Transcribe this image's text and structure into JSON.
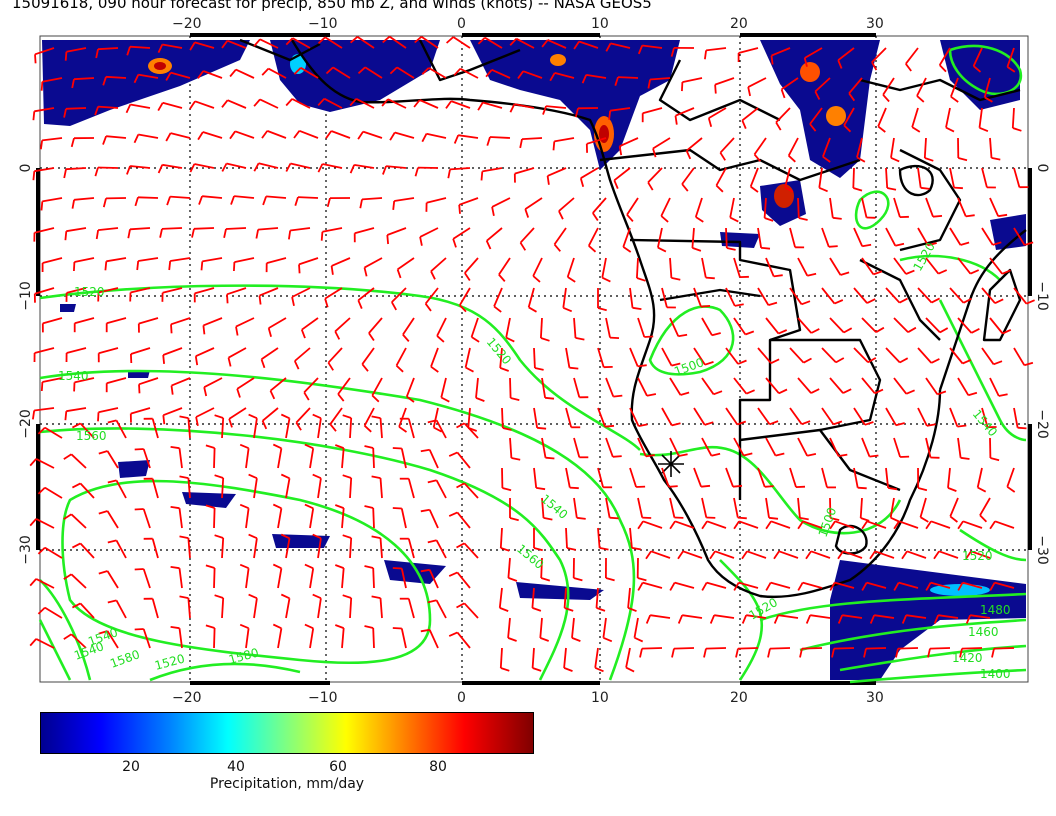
{
  "title": "15091618, 090 hour forecast for precip, 850 mb Z, and winds (knots) -- NASA GEOS5",
  "axes": {
    "x_ticks": [
      "−20",
      "−10",
      "0",
      "10",
      "20",
      "30"
    ],
    "y_ticks": [
      "0",
      "−10",
      "−20",
      "−30"
    ],
    "y_ticks_right": [
      "0",
      "−10",
      "−20",
      "−30"
    ]
  },
  "contour_labels": [
    "1520",
    "1520",
    "1540",
    "1560",
    "1540",
    "1560",
    "1580",
    "1540",
    "1500",
    "1520",
    "1500",
    "1520",
    "1540",
    "1520",
    "1520",
    "1480",
    "1460",
    "1420",
    "1400",
    "1580",
    "1540"
  ],
  "colorbar": {
    "ticks": [
      "20",
      "40",
      "60",
      "80"
    ],
    "caption": "Precipitation, mm/day"
  },
  "colors": {
    "wind_barbs": "#ff0000",
    "contours": "#22ee22",
    "coastline": "#000000",
    "precip_low": "#00008f"
  },
  "marker": "✶"
}
